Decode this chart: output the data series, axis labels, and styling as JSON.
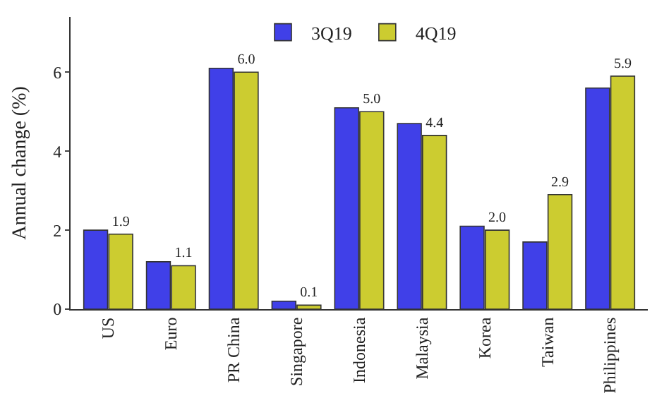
{
  "chart_data": {
    "type": "bar",
    "ylabel": "Annual change (%)",
    "categories": [
      "US",
      "Euro",
      "PR China",
      "Singapore",
      "Indonesia",
      "Malaysia",
      "Korea",
      "Taiwan",
      "Philippines"
    ],
    "series": [
      {
        "name": "3Q19",
        "color": "#4040e8",
        "values": [
          2.0,
          1.2,
          6.1,
          0.2,
          5.1,
          4.7,
          2.1,
          1.7,
          5.6
        ]
      },
      {
        "name": "4Q19",
        "color": "#cccc30",
        "values": [
          1.9,
          1.1,
          6.0,
          0.1,
          5.0,
          4.4,
          2.0,
          2.9,
          5.9
        ],
        "value_labels": [
          "1.9",
          "1.1",
          "6.0",
          "0.1",
          "5.0",
          "4.4",
          "2.0",
          "2.9",
          "5.9"
        ]
      }
    ],
    "ylim": [
      0,
      7.4
    ],
    "yticks": [
      0,
      2,
      4,
      6
    ],
    "legend": "top"
  }
}
